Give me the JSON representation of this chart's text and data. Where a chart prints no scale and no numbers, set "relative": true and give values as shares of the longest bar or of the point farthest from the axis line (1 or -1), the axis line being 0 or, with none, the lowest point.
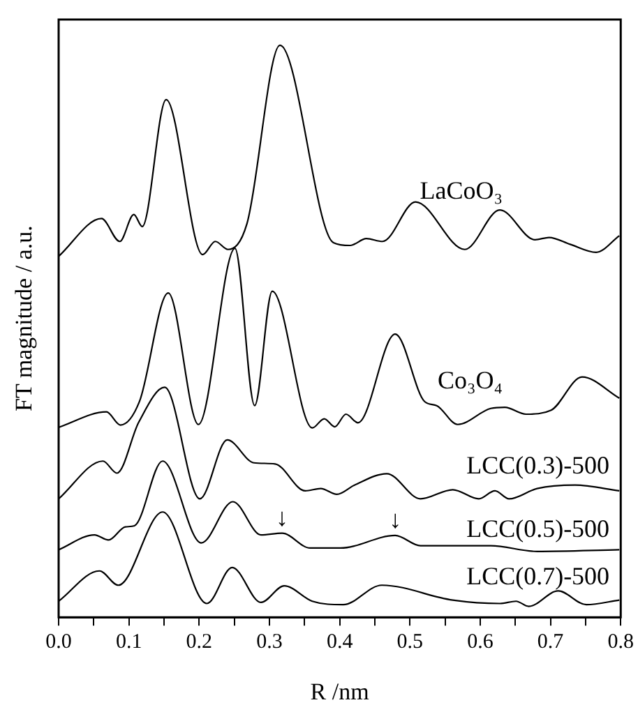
{
  "chart_data": {
    "type": "line",
    "relative": true,
    "xlabel": "R /nm",
    "ylabel": "FT magnitude / a.u.",
    "xlim": [
      0,
      0.8
    ],
    "xticks": [
      {
        "value": 0,
        "label": "0.0"
      },
      {
        "value": 0.05,
        "label": null
      },
      0.1,
      {
        "value": 0.15,
        "label": null
      },
      0.2,
      {
        "value": 0.25,
        "label": null
      },
      0.3,
      {
        "value": 0.35,
        "label": null
      },
      0.4,
      {
        "value": 0.45,
        "label": null
      },
      0.5,
      {
        "value": 0.55,
        "label": null
      },
      0.6,
      {
        "value": 0.65,
        "label": null
      },
      0.7,
      {
        "value": 0.75,
        "label": null
      },
      0.8
    ],
    "legend": false,
    "grid": false,
    "marker": "none",
    "line_style": "solid",
    "annotations": [
      {
        "text": "↓",
        "x": 0.318,
        "y": 0.147
      },
      {
        "text": "↓",
        "x": 0.479,
        "y": 0.143
      }
    ],
    "series": [
      {
        "name": "LaCoO₃",
        "color": "#000000",
        "x": [
          0,
          0.061,
          0.087,
          0.107,
          0.119,
          0.153,
          0.205,
          0.223,
          0.241,
          0.268,
          0.315,
          0.391,
          0.415,
          0.438,
          0.461,
          0.508,
          0.578,
          0.628,
          0.678,
          0.698,
          0.728,
          0.765,
          0.798
        ],
        "values": [
          0.631,
          0.697,
          0.657,
          0.704,
          0.683,
          0.905,
          0.634,
          0.657,
          0.643,
          0.688,
          1.0,
          0.655,
          0.65,
          0.662,
          0.657,
          0.726,
          0.643,
          0.712,
          0.66,
          0.664,
          0.652,
          0.638,
          0.667
        ]
      },
      {
        "name": "Co₃O₄",
        "color": "#000000",
        "x": [
          0,
          0.068,
          0.088,
          0.115,
          0.156,
          0.199,
          0.251,
          0.279,
          0.304,
          0.361,
          0.378,
          0.393,
          0.409,
          0.426,
          0.479,
          0.521,
          0.538,
          0.568,
          0.615,
          0.635,
          0.665,
          0.701,
          0.745,
          0.798
        ],
        "values": [
          0.332,
          0.359,
          0.336,
          0.377,
          0.567,
          0.337,
          0.645,
          0.37,
          0.57,
          0.331,
          0.347,
          0.333,
          0.355,
          0.34,
          0.495,
          0.377,
          0.37,
          0.337,
          0.365,
          0.367,
          0.355,
          0.362,
          0.42,
          0.383
        ]
      },
      {
        "name": "LCC(0.3)-500",
        "color": "#000000",
        "x": [
          0,
          0.063,
          0.083,
          0.114,
          0.151,
          0.201,
          0.24,
          0.278,
          0.308,
          0.351,
          0.373,
          0.396,
          0.421,
          0.467,
          0.515,
          0.561,
          0.598,
          0.621,
          0.641,
          0.681,
          0.735,
          0.798
        ],
        "values": [
          0.207,
          0.273,
          0.252,
          0.341,
          0.402,
          0.207,
          0.31,
          0.27,
          0.268,
          0.221,
          0.225,
          0.215,
          0.231,
          0.251,
          0.207,
          0.223,
          0.207,
          0.221,
          0.207,
          0.225,
          0.231,
          0.221
        ]
      },
      {
        "name": "LCC(0.5)-500",
        "color": "#000000",
        "x": [
          0,
          0.051,
          0.071,
          0.095,
          0.108,
          0.148,
          0.203,
          0.248,
          0.288,
          0.318,
          0.358,
          0.401,
          0.479,
          0.515,
          0.615,
          0.681,
          0.798
        ],
        "values": [
          0.118,
          0.144,
          0.135,
          0.158,
          0.16,
          0.273,
          0.13,
          0.202,
          0.144,
          0.147,
          0.121,
          0.121,
          0.143,
          0.125,
          0.125,
          0.115,
          0.118
        ]
      },
      {
        "name": "LCC(0.7)-500",
        "color": "#000000",
        "x": [
          0,
          0.058,
          0.085,
          0.148,
          0.211,
          0.247,
          0.288,
          0.321,
          0.361,
          0.405,
          0.46,
          0.561,
          0.628,
          0.651,
          0.669,
          0.711,
          0.751,
          0.798
        ],
        "values": [
          0.028,
          0.081,
          0.056,
          0.184,
          0.024,
          0.087,
          0.026,
          0.055,
          0.028,
          0.022,
          0.056,
          0.03,
          0.024,
          0.028,
          0.019,
          0.046,
          0.022,
          0.03
        ]
      }
    ]
  }
}
